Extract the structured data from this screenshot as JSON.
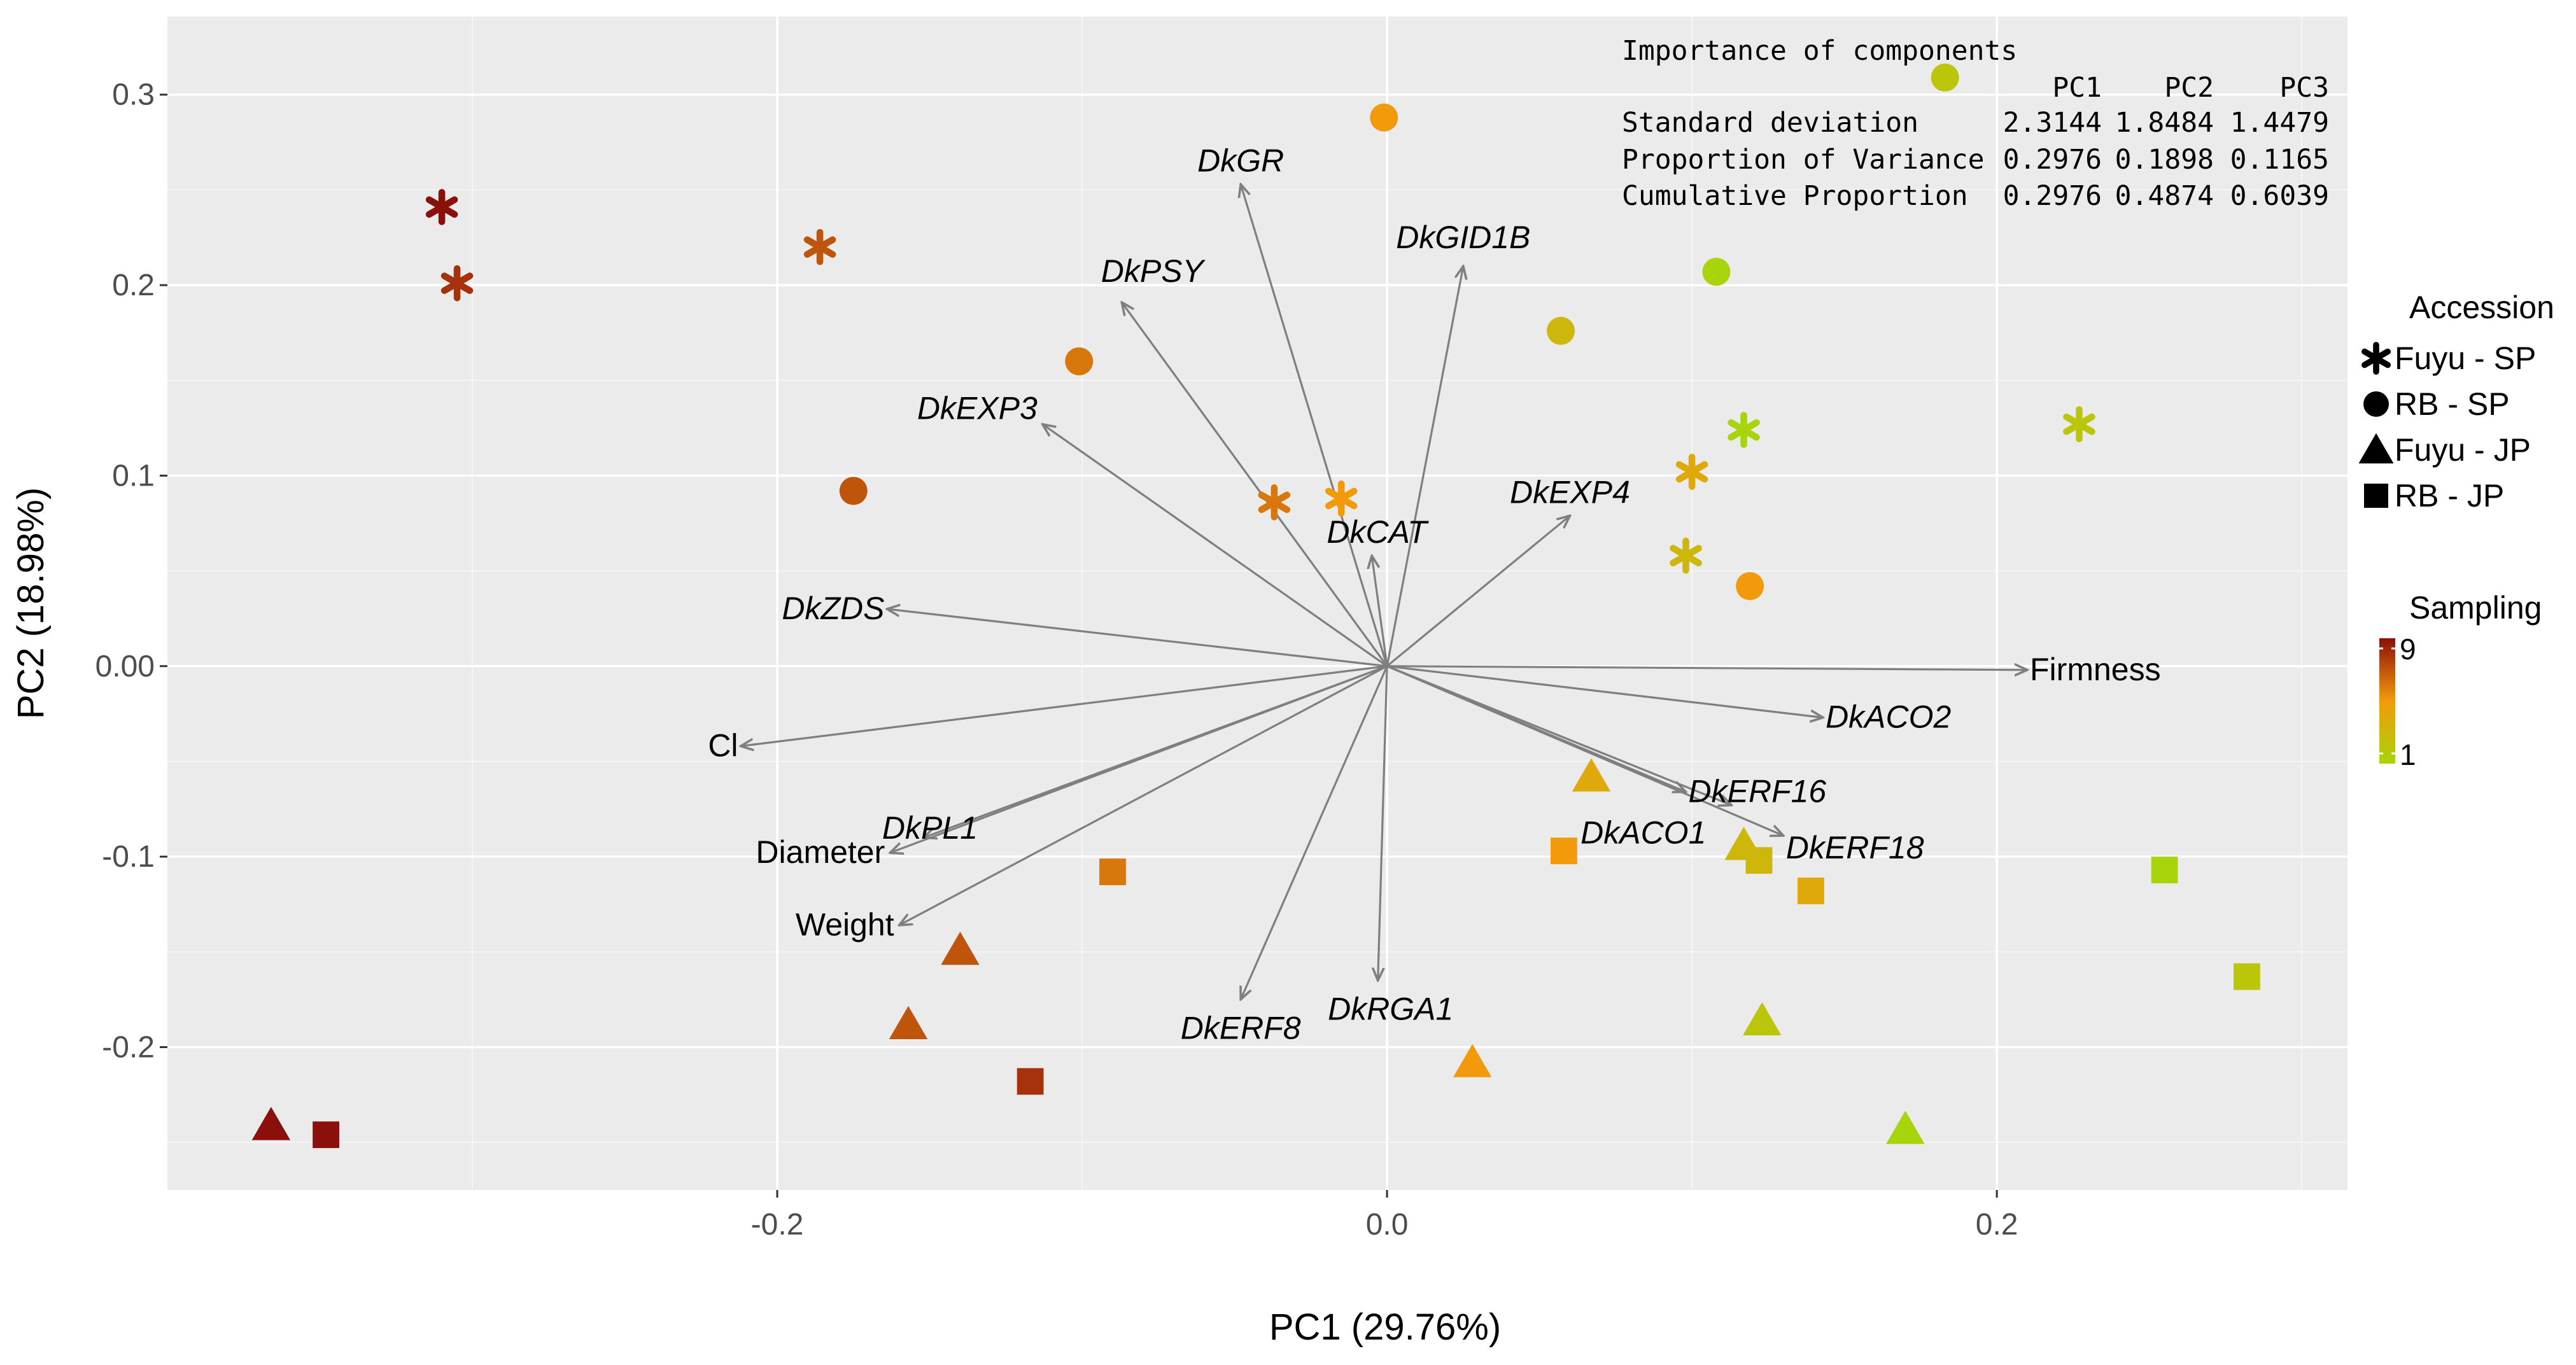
{
  "chart_data": {
    "type": "scatter",
    "subtype": "pca-biplot",
    "xlabel": "PC1 (29.76%)",
    "ylabel": "PC2 (18.98%)",
    "xlim": [
      -0.4,
      0.315
    ],
    "ylim": [
      -0.275,
      0.341
    ],
    "xticks": [
      -0.2,
      0.0,
      0.2
    ],
    "xtick_labels": [
      "-0.2",
      "0.0",
      "0.2"
    ],
    "yticks": [
      -0.2,
      -0.1,
      0.0,
      0.1,
      0.2,
      0.3
    ],
    "ytick_labels": [
      "-0.2",
      "-0.1",
      "0.00",
      "0.1",
      "0.2",
      "0.3"
    ],
    "grid": true,
    "colors": {
      "panel": "#ebebeb",
      "grid_major": "#ffffff",
      "arrow": "#7f7f7f",
      "scale_low": "#a8d40b",
      "scale_mid": "#f29a0b",
      "scale_high": "#8b0f0b"
    },
    "importance_table": {
      "title": "Importance of components",
      "columns": [
        "PC1",
        "PC2",
        "PC3"
      ],
      "rows": [
        {
          "label": "Standard deviation",
          "values": [
            "2.3144",
            "1.8484",
            "1.4479"
          ]
        },
        {
          "label": "Proportion of Variance",
          "values": [
            "0.2976",
            "0.1898",
            "0.1165"
          ]
        },
        {
          "label": "Cumulative Proportion",
          "values": [
            "0.2976",
            "0.4874",
            "0.6039"
          ]
        }
      ]
    },
    "legend_shape": {
      "title": "Accession",
      "entries": [
        {
          "label": "Fuyu - SP",
          "shape": "asterisk"
        },
        {
          "label": "RB - SP",
          "shape": "circle"
        },
        {
          "label": "Fuyu - JP",
          "shape": "triangle"
        },
        {
          "label": "RB - JP",
          "shape": "square"
        }
      ]
    },
    "legend_color": {
      "title": "Sampling",
      "min_label": "1",
      "max_label": "9",
      "min": 1,
      "max": 9
    },
    "loadings": [
      {
        "label": "DkGR",
        "x": -0.048,
        "y": 0.253,
        "italic": true
      },
      {
        "label": "DkGID1B",
        "x": 0.025,
        "y": 0.21,
        "italic": true
      },
      {
        "label": "DkPSY",
        "x": -0.087,
        "y": 0.191,
        "italic": true
      },
      {
        "label": "DkEXP3",
        "x": -0.113,
        "y": 0.127,
        "italic": true
      },
      {
        "label": "DkEXP4",
        "x": 0.06,
        "y": 0.079,
        "italic": true
      },
      {
        "label": "DkCAT",
        "x": -0.005,
        "y": 0.058,
        "italic": true
      },
      {
        "label": "DkZDS",
        "x": -0.164,
        "y": 0.03,
        "italic": true
      },
      {
        "label": "Firmness",
        "x": 0.21,
        "y": -0.002,
        "italic": false
      },
      {
        "label": "DkACO2",
        "x": 0.143,
        "y": -0.027,
        "italic": true
      },
      {
        "label": "Cl",
        "x": -0.212,
        "y": -0.042,
        "italic": false
      },
      {
        "label": "DkERF16",
        "x": 0.098,
        "y": -0.066,
        "italic": true
      },
      {
        "label": "DkACO1",
        "x": 0.113,
        "y": -0.073,
        "italic": true
      },
      {
        "label": "DkERF18",
        "x": 0.13,
        "y": -0.089,
        "italic": true
      },
      {
        "label": "DkPL1",
        "x": -0.152,
        "y": -0.09,
        "italic": true
      },
      {
        "label": "Diameter",
        "x": -0.163,
        "y": -0.098,
        "italic": false
      },
      {
        "label": "Weight",
        "x": -0.16,
        "y": -0.136,
        "italic": false
      },
      {
        "label": "DkERF8",
        "x": -0.048,
        "y": -0.175,
        "italic": true
      },
      {
        "label": "DkRGA1",
        "x": -0.003,
        "y": -0.165,
        "italic": true
      }
    ],
    "points": [
      {
        "shape": "asterisk",
        "x": -0.31,
        "y": 0.241,
        "sampling": 9
      },
      {
        "shape": "asterisk",
        "x": -0.305,
        "y": 0.201,
        "sampling": 8
      },
      {
        "shape": "asterisk",
        "x": -0.186,
        "y": 0.22,
        "sampling": 7
      },
      {
        "shape": "asterisk",
        "x": -0.037,
        "y": 0.086,
        "sampling": 6
      },
      {
        "shape": "asterisk",
        "x": -0.015,
        "y": 0.088,
        "sampling": 5
      },
      {
        "shape": "asterisk",
        "x": 0.1,
        "y": 0.102,
        "sampling": 4
      },
      {
        "shape": "asterisk",
        "x": 0.098,
        "y": 0.058,
        "sampling": 3
      },
      {
        "shape": "asterisk",
        "x": 0.117,
        "y": 0.124,
        "sampling": 1
      },
      {
        "shape": "asterisk",
        "x": 0.227,
        "y": 0.127,
        "sampling": 2
      },
      {
        "shape": "circle",
        "x": -0.175,
        "y": 0.092,
        "sampling": 7
      },
      {
        "shape": "circle",
        "x": -0.101,
        "y": 0.16,
        "sampling": 6
      },
      {
        "shape": "circle",
        "x": -0.001,
        "y": 0.288,
        "sampling": 5
      },
      {
        "shape": "circle",
        "x": 0.057,
        "y": 0.176,
        "sampling": 3
      },
      {
        "shape": "circle",
        "x": 0.108,
        "y": 0.207,
        "sampling": 1
      },
      {
        "shape": "circle",
        "x": 0.183,
        "y": 0.309,
        "sampling": 2
      },
      {
        "shape": "circle",
        "x": 0.119,
        "y": 0.042,
        "sampling": 5
      },
      {
        "shape": "triangle",
        "x": -0.366,
        "y": -0.241,
        "sampling": 9
      },
      {
        "shape": "triangle",
        "x": -0.157,
        "y": -0.188,
        "sampling": 7
      },
      {
        "shape": "triangle",
        "x": -0.14,
        "y": -0.149,
        "sampling": 7
      },
      {
        "shape": "triangle",
        "x": 0.028,
        "y": -0.208,
        "sampling": 5
      },
      {
        "shape": "triangle",
        "x": 0.067,
        "y": -0.058,
        "sampling": 4
      },
      {
        "shape": "triangle",
        "x": 0.117,
        "y": -0.094,
        "sampling": 3
      },
      {
        "shape": "triangle",
        "x": 0.123,
        "y": -0.186,
        "sampling": 2
      },
      {
        "shape": "triangle",
        "x": 0.17,
        "y": -0.243,
        "sampling": 1
      },
      {
        "shape": "square",
        "x": -0.348,
        "y": -0.246,
        "sampling": 9
      },
      {
        "shape": "square",
        "x": -0.117,
        "y": -0.218,
        "sampling": 8
      },
      {
        "shape": "square",
        "x": -0.09,
        "y": -0.108,
        "sampling": 6
      },
      {
        "shape": "square",
        "x": 0.058,
        "y": -0.097,
        "sampling": 5
      },
      {
        "shape": "square",
        "x": 0.122,
        "y": -0.102,
        "sampling": 3
      },
      {
        "shape": "square",
        "x": 0.139,
        "y": -0.118,
        "sampling": 4
      },
      {
        "shape": "square",
        "x": 0.255,
        "y": -0.107,
        "sampling": 1
      },
      {
        "shape": "square",
        "x": 0.282,
        "y": -0.163,
        "sampling": 2
      }
    ]
  }
}
